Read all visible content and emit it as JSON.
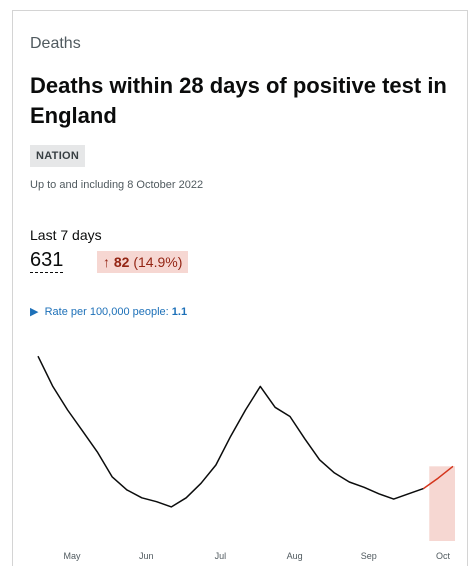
{
  "header": {
    "topic": "Deaths",
    "title": "Deaths within 28 days of positive test in England",
    "area_type": "NATION",
    "date": "Up to and including 8 October 2022"
  },
  "headline": {
    "period": "Last 7 days",
    "value": "631",
    "change": "82",
    "change_percent": "(14.9%)",
    "rate_label": "Rate per 100,000 people:",
    "rate_value": "1.1"
  },
  "chart_data": {
    "type": "line",
    "color": "#0b0c0c",
    "highlight_color": "#d4351c",
    "highlight_count": 2,
    "xticks": [
      "May",
      "Jun",
      "Jul",
      "Aug",
      "Sep",
      "Oct"
    ],
    "values": [
      141,
      118,
      100,
      84,
      68,
      49,
      39,
      33,
      30,
      26,
      33,
      44,
      58,
      80,
      100,
      118,
      102,
      95,
      78,
      62,
      52,
      45,
      41,
      36,
      32,
      36,
      40,
      48,
      57
    ],
    "ylim": [
      0,
      145
    ]
  }
}
